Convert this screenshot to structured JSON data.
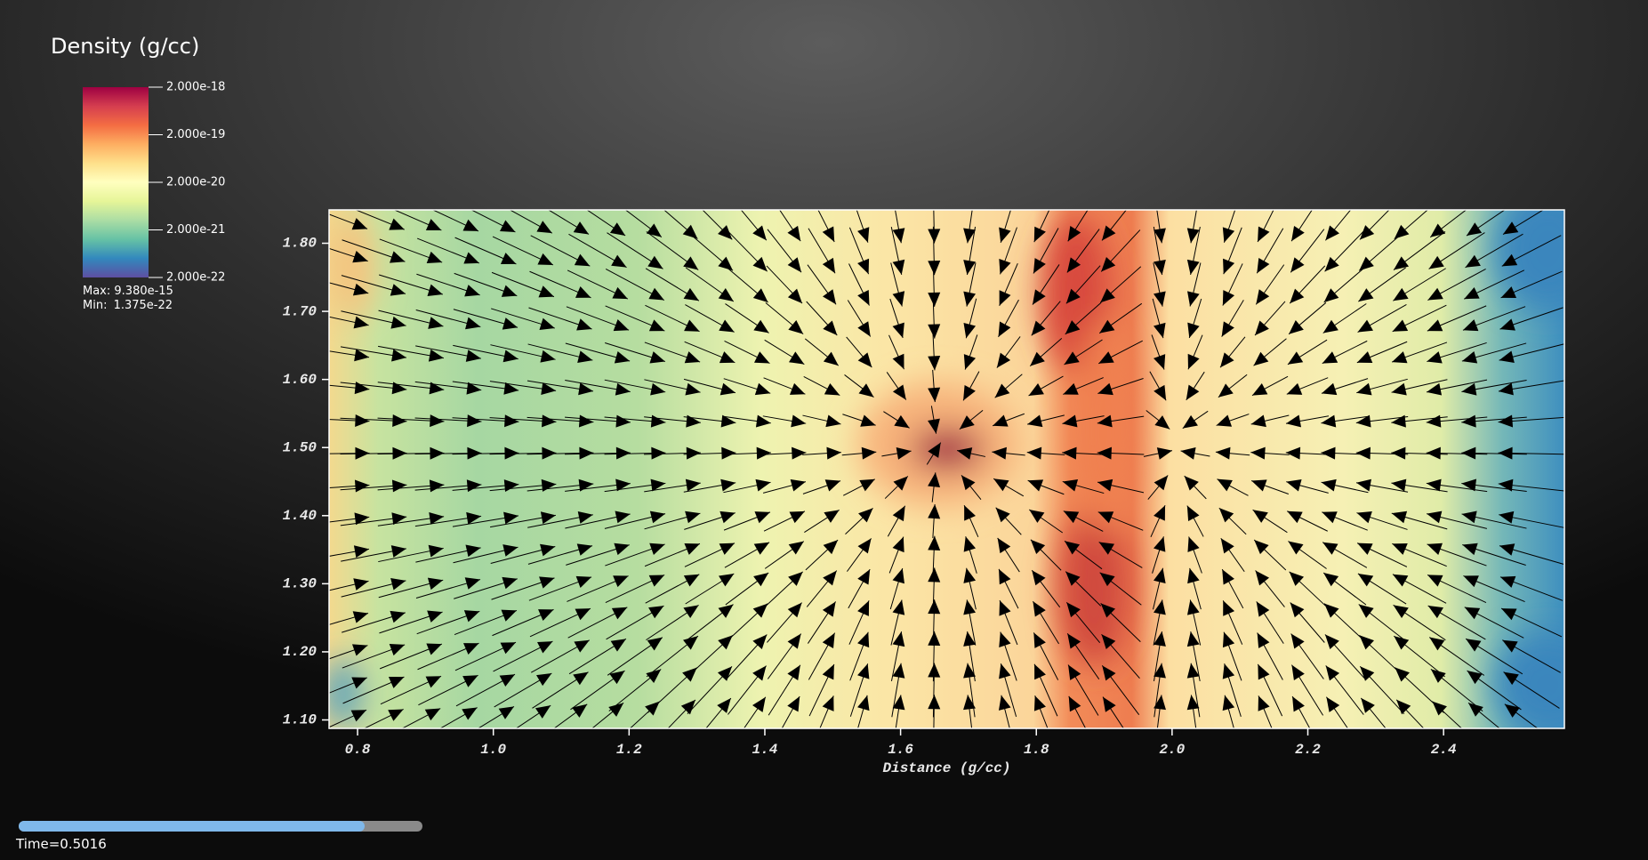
{
  "chart_data": {
    "type": "vector_field",
    "title": "Density (g/cc)",
    "xlabel": "Distance (g/cc)",
    "xlim": [
      0.758,
      2.578
    ],
    "ylim": [
      1.0876,
      1.849
    ],
    "xticks": [
      0.8,
      {
        "value": 1,
        "label": "1.0"
      },
      1.2,
      1.4,
      1.6,
      1.8,
      {
        "value": 2,
        "label": "2.0"
      },
      2.2,
      2.4
    ],
    "yticks": [
      {
        "value": 1.1,
        "label": "1.10"
      },
      {
        "value": 1.2,
        "label": "1.20"
      },
      {
        "value": 1.3,
        "label": "1.30"
      },
      {
        "value": 1.4,
        "label": "1.40"
      },
      {
        "value": 1.5,
        "label": "1.50"
      },
      {
        "value": 1.6,
        "label": "1.60"
      },
      {
        "value": 1.7,
        "label": "1.70"
      },
      {
        "value": 1.8,
        "label": "1.80"
      }
    ],
    "colorbar": {
      "log_scale": true,
      "ticks": [
        {
          "value": 2e-18,
          "label": "2.000e-18"
        },
        {
          "value": 2e-19,
          "label": "2.000e-19"
        },
        {
          "value": 2e-20,
          "label": "2.000e-20"
        },
        {
          "value": 2e-21,
          "label": "2.000e-21"
        },
        {
          "value": 2e-22,
          "label": "2.000e-22"
        }
      ],
      "max_label": "Max:",
      "max": {
        "value": 9.38e-15,
        "label": "9.380e-15"
      },
      "min_label": "Min:",
      "min": {
        "value": 1.375e-22,
        "label": "1.375e-22"
      }
    },
    "time_label": "Time=",
    "time": 0.5016
  }
}
